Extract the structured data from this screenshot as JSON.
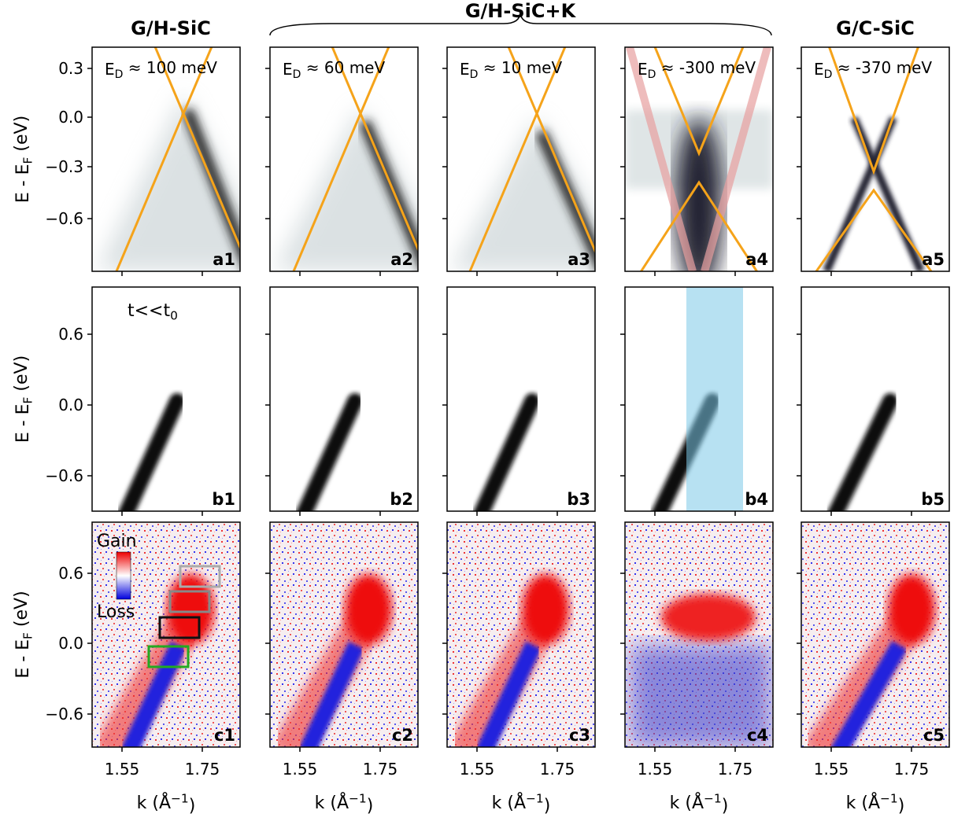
{
  "column_headers": [
    "G/H-SiC",
    "G/H-SiC+K",
    "G/C-SiC"
  ],
  "dirac_energies": [
    {
      "main": "E",
      "sub": "D",
      "rest": " ≈ 100 meV"
    },
    {
      "main": "E",
      "sub": "D",
      "rest": " ≈ 60 meV"
    },
    {
      "main": "E",
      "sub": "D",
      "rest": " ≈ 10 meV"
    },
    {
      "main": "E",
      "sub": "D",
      "rest": " ≈ -300 meV"
    },
    {
      "main": "E",
      "sub": "D",
      "rest": " ≈ -370 meV"
    }
  ],
  "panel_labels": [
    [
      "a1",
      "a2",
      "a3",
      "a4",
      "a5"
    ],
    [
      "b1",
      "b2",
      "b3",
      "b4",
      "b5"
    ],
    [
      "c1",
      "c2",
      "c3",
      "c4",
      "c5"
    ]
  ],
  "y_axis_label": {
    "main": "E - E",
    "sub": "F",
    "rest": " (eV)"
  },
  "x_axis_label": {
    "main": "k (Å",
    "sup": "−1",
    "rest": ")"
  },
  "y_tick_labels": [
    [
      "0.3",
      "0.0",
      "−0.3",
      "−0.6"
    ],
    [
      "0.6",
      "0.0",
      "−0.6"
    ],
    [
      "0.6",
      "0.0",
      "−0.6"
    ]
  ],
  "x_tick_labels": [
    "1.55",
    "1.75"
  ],
  "time_annotation": {
    "main": "t<<t",
    "sub": "0"
  },
  "colorbar_labels": {
    "top": "Gain",
    "bottom": "Loss"
  }
}
